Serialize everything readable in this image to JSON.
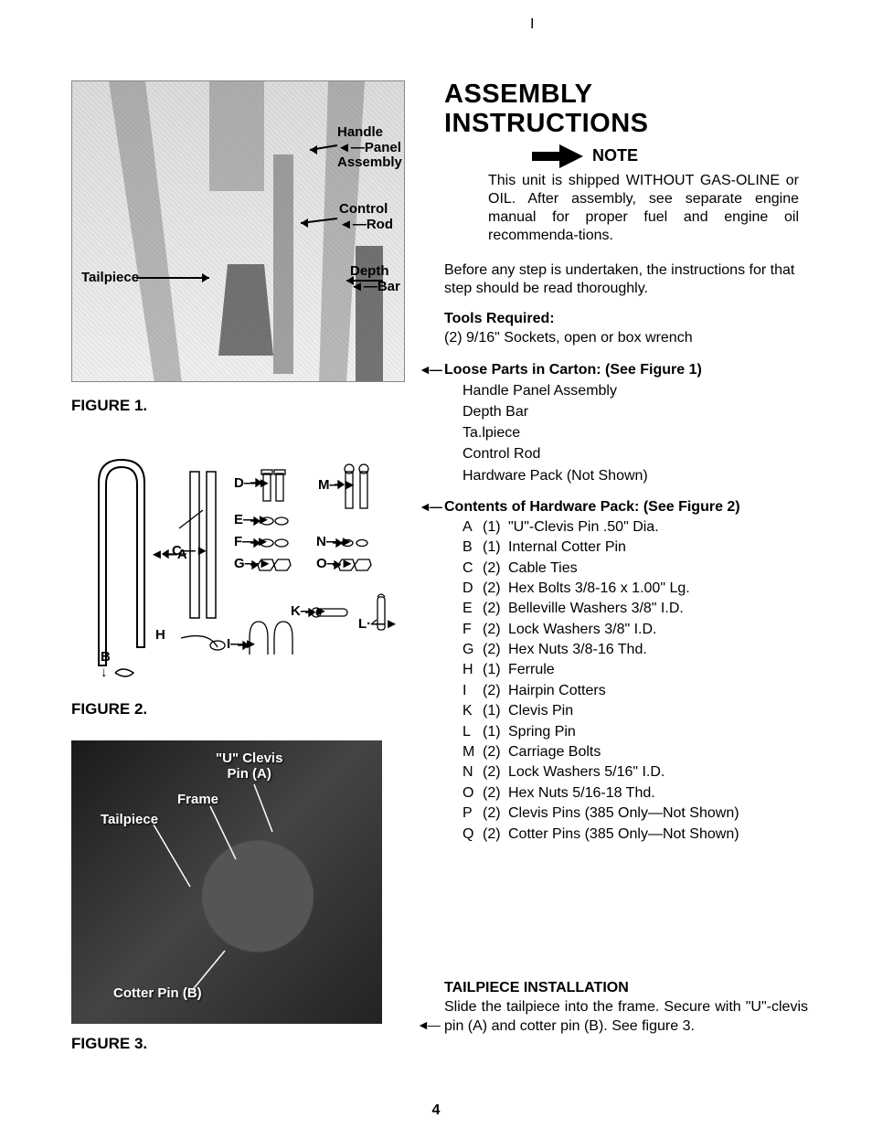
{
  "page_number": "4",
  "top_mark": "I",
  "title_line1": "ASSEMBLY",
  "title_line2": "INSTRUCTIONS",
  "note_label": "NOTE",
  "note_body": "This unit is shipped WITHOUT GAS-OLINE or OIL. After assembly, see separate engine manual for proper fuel and engine oil recommenda-tions.",
  "intro_para": "Before any step is undertaken, the instructions for that step should be read thoroughly.",
  "tools_head": "Tools Required:",
  "tools_body": "(2) 9/16\" Sockets, open or box wrench",
  "loose_head": "Loose Parts in Carton: (See Figure 1)",
  "loose_items": [
    "Handle Panel Assembly",
    "Depth Bar",
    "Ta.lpiece",
    "Control Rod",
    "Hardware Pack (Not Shown)"
  ],
  "hw_head": "Contents of Hardware Pack: (See Figure 2)",
  "hw_items": [
    {
      "l": "A",
      "q": "(1)",
      "d": "\"U\"-Clevis Pin .50\" Dia."
    },
    {
      "l": "B",
      "q": "(1)",
      "d": "Internal Cotter Pin"
    },
    {
      "l": "C",
      "q": "(2)",
      "d": "Cable Ties"
    },
    {
      "l": "D",
      "q": "(2)",
      "d": "Hex Bolts 3/8-16 x 1.00\" Lg."
    },
    {
      "l": "E",
      "q": "(2)",
      "d": "Belleville Washers 3/8\" I.D."
    },
    {
      "l": "F",
      "q": "(2)",
      "d": "Lock Washers 3/8\" I.D."
    },
    {
      "l": "G",
      "q": "(2)",
      "d": "Hex Nuts 3/8-16 Thd."
    },
    {
      "l": "H",
      "q": "(1)",
      "d": "Ferrule"
    },
    {
      "l": "I",
      "q": "(2)",
      "d": "Hairpin Cotters"
    },
    {
      "l": "K",
      "q": "(1)",
      "d": "Clevis Pin"
    },
    {
      "l": "L",
      "q": "(1)",
      "d": "Spring Pin"
    },
    {
      "l": "M",
      "q": "(2)",
      "d": "Carriage Bolts"
    },
    {
      "l": "N",
      "q": "(2)",
      "d": "Lock Washers 5/16\" I.D."
    },
    {
      "l": "O",
      "q": "(2)",
      "d": "Hex Nuts 5/16-18 Thd."
    },
    {
      "l": "P",
      "q": "(2)",
      "d": "Clevis Pins (385 Only—Not Shown)"
    },
    {
      "l": "Q",
      "q": "(2)",
      "d": "Cotter Pins (385 Only—Not Shown)"
    }
  ],
  "tail_head": "TAILPIECE INSTALLATION",
  "tail_body": "Slide the tailpiece into the frame. Secure with \"U\"-clevis pin (A) and cotter pin (B). See figure 3.",
  "fig1": {
    "caption": "FIGURE 1.",
    "labels": {
      "handle_panel": "Handle\nPanel\nAssembly",
      "control_rod": "Control\nRod",
      "tailpiece": "Tailpiece",
      "depth_bar": "Depth\nBar"
    }
  },
  "fig2": {
    "caption": "FIGURE 2.",
    "letters": {
      "A": "A",
      "B": "B",
      "C": "C",
      "D": "D",
      "E": "E",
      "F": "F",
      "G": "G",
      "H": "H",
      "I": "I",
      "K": "K",
      "L": "L",
      "M": "M",
      "N": "N",
      "O": "O"
    }
  },
  "fig3": {
    "caption": "FIGURE 3.",
    "labels": {
      "u_clevis": "\"U\" Clevis\nPin (A)",
      "frame": "Frame",
      "tailpiece": "Tailpiece",
      "cotter": "Cotter Pin (B)"
    }
  },
  "style": {
    "text_color": "#000000",
    "background_color": "#ffffff",
    "title_fontsize_pt": 22,
    "body_fontsize_pt": 12,
    "caption_fontsize_pt": 13,
    "font_family": "Helvetica/Arial",
    "arrow_color": "#000000",
    "photo_bg": "#e8e8e8",
    "fig3_bg": "#2a2a2a"
  }
}
